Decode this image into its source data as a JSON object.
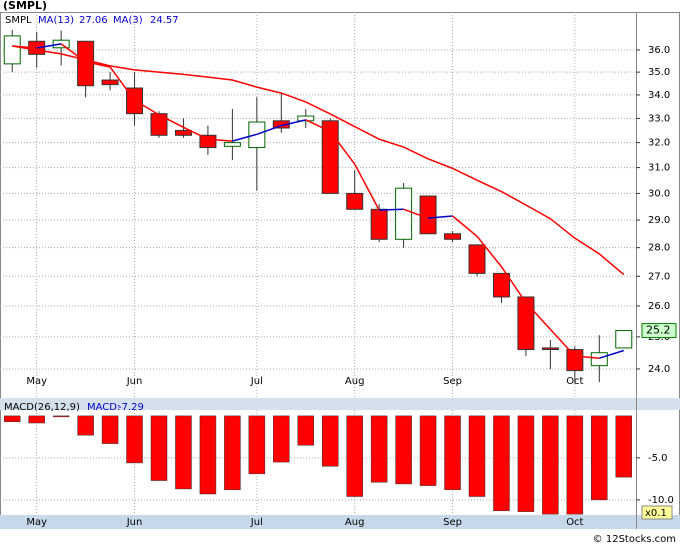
{
  "chart_data": [
    {
      "type": "candlestick",
      "title": "(SMPL)",
      "categories": [
        null,
        "May",
        null,
        null,
        null,
        "Jun",
        null,
        null,
        null,
        null,
        "Jul",
        null,
        null,
        null,
        "Aug",
        null,
        null,
        null,
        "Sep",
        null,
        null,
        null,
        null,
        "Oct",
        null,
        null
      ],
      "series": [
        {
          "name": "SMPL",
          "up_color": "#ffffff",
          "down_color": "#ff0000",
          "name_color": "#008000",
          "open": [
            35.37,
            36.4,
            36.1,
            36.4,
            34.65,
            34.3,
            33.2,
            32.5,
            32.3,
            31.85,
            31.8,
            32.9,
            32.9,
            32.9,
            30.0,
            29.4,
            28.3,
            29.9,
            28.5,
            28.1,
            27.1,
            26.3,
            24.65,
            24.6,
            24.1,
            24.65
          ],
          "high": [
            36.93,
            36.83,
            36.9,
            36.4,
            35.0,
            35.0,
            33.3,
            33.0,
            32.7,
            33.4,
            33.9,
            34.1,
            33.4,
            33.0,
            30.9,
            29.6,
            30.4,
            29.9,
            28.6,
            28.1,
            27.1,
            26.3,
            24.9,
            24.7,
            25.05,
            25.2
          ],
          "low": [
            35.0,
            35.2,
            35.3,
            33.9,
            34.2,
            32.7,
            32.2,
            32.2,
            31.5,
            31.3,
            30.1,
            32.4,
            32.6,
            30.0,
            29.4,
            28.2,
            28.0,
            28.5,
            28.2,
            27.0,
            26.1,
            24.4,
            24.0,
            23.55,
            23.6,
            24.65
          ],
          "close": [
            36.65,
            35.8,
            36.45,
            34.4,
            34.45,
            33.2,
            32.3,
            32.3,
            31.8,
            32.0,
            32.85,
            32.6,
            33.1,
            30.0,
            29.4,
            28.3,
            30.2,
            28.5,
            28.3,
            27.1,
            26.3,
            24.6,
            24.6,
            23.95,
            24.5,
            25.2
          ]
        },
        {
          "name": "MA(13)",
          "color": "#ff0000",
          "name_color": "#0000cc",
          "values": [
            36.18,
            36.0,
            35.82,
            35.55,
            35.28,
            35.1,
            35.0,
            34.9,
            34.78,
            34.65,
            34.34,
            34.08,
            33.7,
            33.19,
            32.66,
            32.14,
            31.82,
            31.35,
            30.97,
            30.51,
            30.07,
            29.56,
            29.05,
            28.34,
            27.78,
            27.06
          ]
        },
        {
          "name": "MA(3)",
          "color": "#ff0000",
          "up_color": "#0000cc",
          "name_color": "#0000cc",
          "values": [
            36.18,
            36.09,
            36.28,
            35.46,
            35.23,
            33.77,
            33.15,
            32.63,
            32.14,
            32.06,
            32.34,
            32.7,
            32.94,
            32.46,
            31.14,
            29.37,
            29.4,
            29.07,
            29.15,
            28.41,
            27.33,
            26.11,
            25.24,
            24.4,
            24.33,
            24.57
          ]
        }
      ],
      "log_scale": true,
      "grid": true,
      "ylim": [
        23.13,
        37.78
      ],
      "yticks": [
        {
          "value": 24,
          "label": "24.0"
        },
        {
          "value": 25,
          "label": "25.0"
        },
        {
          "value": 26,
          "label": "26.0"
        },
        {
          "value": 27,
          "label": "27.0"
        },
        {
          "value": 28,
          "label": "28.0"
        },
        {
          "value": 29,
          "label": "29.0"
        },
        {
          "value": 30,
          "label": "30.0"
        },
        {
          "value": 31,
          "label": "31.0"
        },
        {
          "value": 32,
          "label": "32.0"
        },
        {
          "value": 33,
          "label": "33.0"
        },
        {
          "value": 34,
          "label": "34.0"
        },
        {
          "value": 35,
          "label": "35.0"
        },
        {
          "value": 36,
          "label": "36.0"
        }
      ]
    },
    {
      "type": "bar",
      "series": [
        {
          "name": "MACD(26,12,9)",
          "color": "#ff0000",
          "values": [
            -0.7,
            -0.85,
            -0.1,
            -2.3,
            -3.3,
            -5.6,
            -7.7,
            -8.7,
            -9.3,
            -8.8,
            -6.9,
            -5.5,
            -3.5,
            -6.0,
            -9.6,
            -7.9,
            -8.1,
            -8.3,
            -8.8,
            -9.6,
            -11.3,
            -11.4,
            -11.7,
            -11.7,
            -10.0,
            -7.29
          ]
        }
      ],
      "value_caption": "MACD:",
      "categories": [
        null,
        "May",
        null,
        null,
        null,
        "Jun",
        null,
        null,
        null,
        null,
        "Jul",
        null,
        null,
        null,
        "Aug",
        null,
        null,
        null,
        "Sep",
        null,
        null,
        null,
        null,
        "Oct",
        null,
        null
      ],
      "ylim": [
        -11.8,
        0.7
      ],
      "grid": true,
      "yticks": [
        {
          "value": -5,
          "label": "-5.0"
        },
        {
          "value": -10,
          "label": "-10.0"
        }
      ],
      "scale_note": "x0.1"
    },
    {
      "type": "footer",
      "text": "© 12Stocks.com"
    }
  ]
}
